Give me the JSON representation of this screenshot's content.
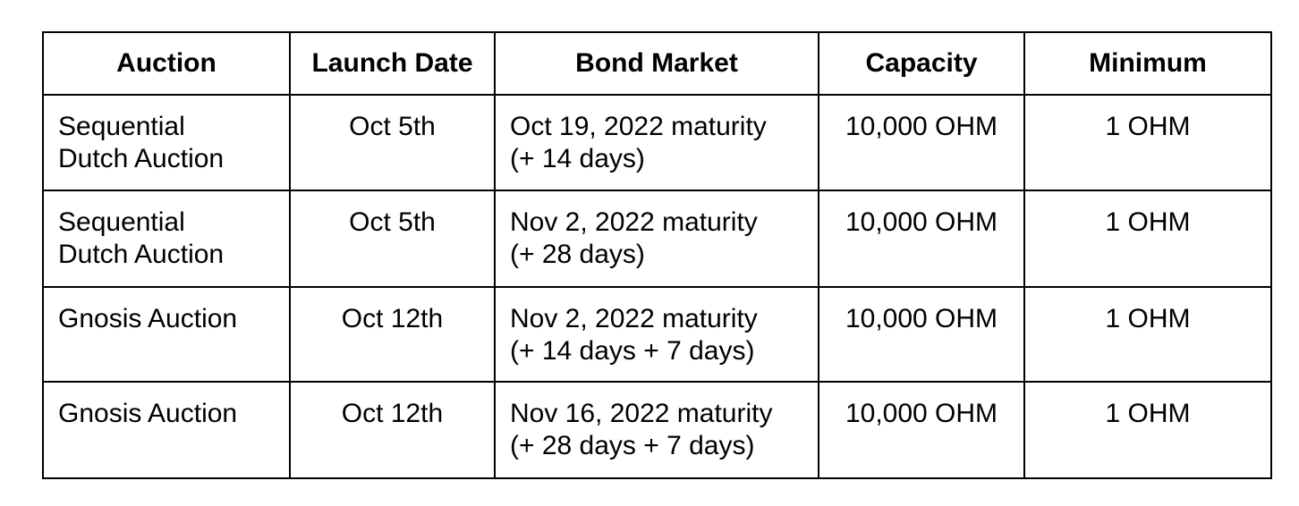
{
  "table": {
    "headers": [
      "Auction",
      "Launch Date",
      "Bond Market",
      "Capacity",
      "Minimum"
    ],
    "rows": [
      {
        "auction": [
          "Sequential",
          "Dutch Auction"
        ],
        "launch_date": "Oct 5th",
        "bond_market": [
          "Oct 19, 2022 maturity",
          "(+ 14 days)"
        ],
        "capacity": "10,000 OHM",
        "minimum": "1 OHM"
      },
      {
        "auction": [
          "Sequential",
          "Dutch Auction"
        ],
        "launch_date": "Oct 5th",
        "bond_market": [
          "Nov 2, 2022 maturity",
          "(+ 28 days)"
        ],
        "capacity": "10,000 OHM",
        "minimum": "1 OHM"
      },
      {
        "auction": [
          "Gnosis Auction"
        ],
        "launch_date": "Oct 12th",
        "bond_market": [
          "Nov 2, 2022 maturity",
          "(+ 14 days + 7 days)"
        ],
        "capacity": "10,000 OHM",
        "minimum": "1 OHM"
      },
      {
        "auction": [
          "Gnosis Auction"
        ],
        "launch_date": "Oct 12th",
        "bond_market": [
          "Nov 16, 2022 maturity",
          "(+ 28 days + 7 days)"
        ],
        "capacity": "10,000 OHM",
        "minimum": "1 OHM"
      }
    ]
  }
}
